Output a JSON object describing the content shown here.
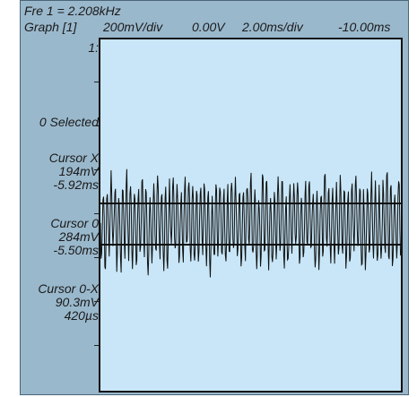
{
  "header": {
    "frequency": "Fre 1 = 2.208kHz",
    "graph": "Graph [1]",
    "volts_per_div": "200mV/div",
    "offset": "0.00V",
    "time_per_div": "2.00ms/div",
    "delay": "-10.00ms"
  },
  "side_panel": {
    "channel": "1:",
    "selected": "0 Selected",
    "cursor_x": {
      "label": "Cursor X",
      "voltage": "194mV",
      "time": "-5.92ms"
    },
    "cursor_0": {
      "label": "Cursor 0",
      "voltage": "284mV",
      "time": "-5.50ms"
    },
    "cursor_delta": {
      "label": "Cursor 0-X",
      "voltage": "90.3mV",
      "time": "420µs"
    }
  },
  "colors": {
    "panel": "#9ab8cc",
    "graph_bg": "#c8e6f7",
    "trace": "#111111"
  }
}
